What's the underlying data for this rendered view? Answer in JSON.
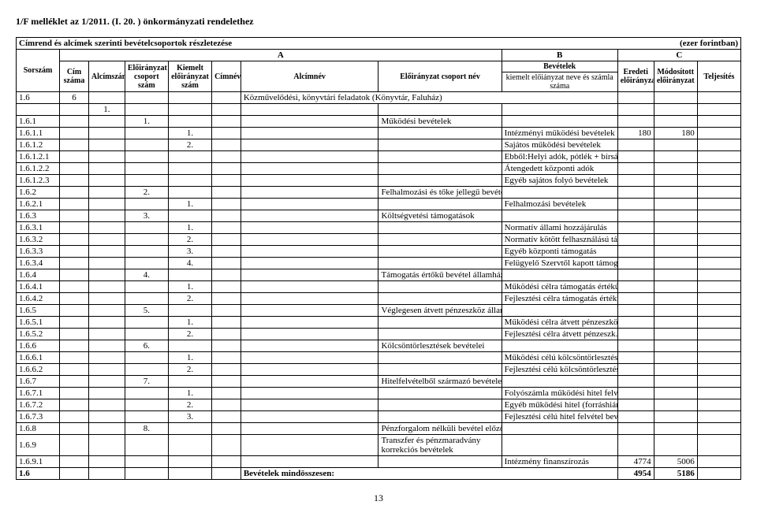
{
  "header_left": "1/F melléklet az 1/2011. (I. 20. ) önkormányzati rendelethez",
  "table_title": "Címrend és alcímek szerinti bevételcsoportok részletezése",
  "unit_label": "(ezer forintban)",
  "abc": {
    "a": "A",
    "b": "B",
    "c": "C"
  },
  "head": {
    "sorszam": "Sorszám",
    "cim_szama": "Cím száma",
    "alcimszam": "Alcímszám",
    "eloiranyzat_csoport_szam": "Előirányzat csoport szám",
    "kiemelt_eloiranyzat_szam": "Kiemelt előirányzat szám",
    "cimnev": "Címnév",
    "alcimnev": "Alcímnév",
    "eloiranyzat_csoport_nev": "Előirányzat csoport név",
    "bevetelek": "Bevételek",
    "kiemelt_sub": "kiemelt előiányzat neve és számla száma",
    "eredeti": "Eredeti előirányzat",
    "modositott": "Módosított előirányzat",
    "teljesites": "Teljesítés"
  },
  "rows": [
    {
      "sor": "1.6",
      "cim": "6",
      "alcim": "",
      "ecs": "",
      "kie": "",
      "cimnev": "",
      "alcimnev": "Közművelődési, könyvtári feladatok (Könyvtár, Faluház)",
      "ecsn": "",
      "nev": "",
      "er": "",
      "mod": "",
      "tel": "",
      "bold": false,
      "span_alcimnev": 3
    },
    {
      "sor": "",
      "cim": "",
      "alcim": "1.",
      "ecs": "",
      "kie": "",
      "cimnev": "",
      "alcimnev": "",
      "ecsn": "",
      "nev": "",
      "er": "",
      "mod": "",
      "tel": "",
      "bold": false
    },
    {
      "sor": "1.6.1",
      "cim": "",
      "alcim": "",
      "ecs": "1.",
      "kie": "",
      "cimnev": "",
      "alcimnev": "",
      "ecsn": "Működési bevételek",
      "nev": "",
      "er": "",
      "mod": "",
      "tel": "",
      "bold": false
    },
    {
      "sor": "1.6.1.1",
      "cim": "",
      "alcim": "",
      "ecs": "",
      "kie": "1.",
      "cimnev": "",
      "alcimnev": "",
      "ecsn": "",
      "nev": "Intézményi működési bevételek",
      "er": "180",
      "mod": "180",
      "tel": "",
      "bold": false
    },
    {
      "sor": "1.6.1.2",
      "cim": "",
      "alcim": "",
      "ecs": "",
      "kie": "2.",
      "cimnev": "",
      "alcimnev": "",
      "ecsn": "",
      "nev": "Sajátos működési bevételek",
      "er": "",
      "mod": "",
      "tel": "",
      "bold": false
    },
    {
      "sor": "1.6.1.2.1",
      "cim": "",
      "alcim": "",
      "ecs": "",
      "kie": "",
      "cimnev": "",
      "alcimnev": "",
      "ecsn": "",
      "nev": "Ebből:Helyi adók, pótlék + bírság",
      "er": "",
      "mod": "",
      "tel": "",
      "bold": false
    },
    {
      "sor": "1.6.1.2.2",
      "cim": "",
      "alcim": "",
      "ecs": "",
      "kie": "",
      "cimnev": "",
      "alcimnev": "",
      "ecsn": "",
      "nev": "Átengedett központi adók",
      "er": "",
      "mod": "",
      "tel": "",
      "bold": false
    },
    {
      "sor": "1.6.1.2.3",
      "cim": "",
      "alcim": "",
      "ecs": "",
      "kie": "",
      "cimnev": "",
      "alcimnev": "",
      "ecsn": "",
      "nev": "Egyéb sajátos folyó bevételek",
      "er": "",
      "mod": "",
      "tel": "",
      "bold": false
    },
    {
      "sor": "1.6.2",
      "cim": "",
      "alcim": "",
      "ecs": "2.",
      "kie": "",
      "cimnev": "",
      "alcimnev": "",
      "ecsn": "Felhalmozási és tőke jellegű bevételek",
      "nev": "",
      "er": "",
      "mod": "",
      "tel": "",
      "bold": false
    },
    {
      "sor": "1.6.2.1",
      "cim": "",
      "alcim": "",
      "ecs": "",
      "kie": "1.",
      "cimnev": "",
      "alcimnev": "",
      "ecsn": "",
      "nev": "Felhalmozási bevételek",
      "er": "",
      "mod": "",
      "tel": "",
      "bold": false
    },
    {
      "sor": "1.6.3",
      "cim": "",
      "alcim": "",
      "ecs": "3.",
      "kie": "",
      "cimnev": "",
      "alcimnev": "",
      "ecsn": "Költségvetési támogatások",
      "nev": "",
      "er": "",
      "mod": "",
      "tel": "",
      "bold": false
    },
    {
      "sor": "1.6.3.1",
      "cim": "",
      "alcim": "",
      "ecs": "",
      "kie": "1.",
      "cimnev": "",
      "alcimnev": "",
      "ecsn": "",
      "nev": "Normatív állami hozzájárulás",
      "er": "",
      "mod": "",
      "tel": "",
      "bold": false
    },
    {
      "sor": "1.6.3.2",
      "cim": "",
      "alcim": "",
      "ecs": "",
      "kie": "2.",
      "cimnev": "",
      "alcimnev": "",
      "ecsn": "",
      "nev": "Normatív kötött felhasználású támogatás",
      "er": "",
      "mod": "",
      "tel": "",
      "bold": false
    },
    {
      "sor": "1.6.3.3",
      "cim": "",
      "alcim": "",
      "ecs": "",
      "kie": "3.",
      "cimnev": "",
      "alcimnev": "",
      "ecsn": "",
      "nev": "Egyéb központi támogatás",
      "er": "",
      "mod": "",
      "tel": "",
      "bold": false
    },
    {
      "sor": "1.6.3.4",
      "cim": "",
      "alcim": "",
      "ecs": "",
      "kie": "4.",
      "cimnev": "",
      "alcimnev": "",
      "ecsn": "",
      "nev": "Felügyelő Szervtől kapott támogatás",
      "er": "",
      "mod": "",
      "tel": "",
      "bold": false
    },
    {
      "sor": "1.6.4",
      "cim": "",
      "alcim": "",
      "ecs": "4.",
      "kie": "",
      "cimnev": "",
      "alcimnev": "",
      "ecsn": "Támogatás értőkű bevétel államháztartáson belül",
      "nev": "",
      "er": "",
      "mod": "",
      "tel": "",
      "bold": false
    },
    {
      "sor": "1.6.4.1",
      "cim": "",
      "alcim": "",
      "ecs": "",
      "kie": "1.",
      "cimnev": "",
      "alcimnev": "",
      "ecsn": "",
      "nev": "Működési célra támogatás értékű bevétel",
      "er": "",
      "mod": "",
      "tel": "",
      "bold": false
    },
    {
      "sor": "1.6.4.2",
      "cim": "",
      "alcim": "",
      "ecs": "",
      "kie": "2.",
      "cimnev": "",
      "alcimnev": "",
      "ecsn": "",
      "nev": "Fejlesztési célra támogatás értékű bevétel",
      "er": "",
      "mod": "",
      "tel": "",
      "bold": false
    },
    {
      "sor": "1.6.5",
      "cim": "",
      "alcim": "",
      "ecs": "5.",
      "kie": "",
      "cimnev": "",
      "alcimnev": "",
      "ecsn": "Véglegesen átvett pénzeszköz államháztartáson kívül",
      "nev": "",
      "er": "",
      "mod": "",
      "tel": "",
      "bold": false
    },
    {
      "sor": "1.6.5.1",
      "cim": "",
      "alcim": "",
      "ecs": "",
      "kie": "1.",
      "cimnev": "",
      "alcimnev": "",
      "ecsn": "",
      "nev": "Működési célra átvett pénzeszközök",
      "er": "",
      "mod": "",
      "tel": "",
      "bold": false
    },
    {
      "sor": "1.6.5.2",
      "cim": "",
      "alcim": "",
      "ecs": "",
      "kie": "2.",
      "cimnev": "",
      "alcimnev": "",
      "ecsn": "",
      "nev": "Fejlesztési célra átvett pénzeszk.",
      "er": "",
      "mod": "",
      "tel": "",
      "bold": false
    },
    {
      "sor": "1.6.6",
      "cim": "",
      "alcim": "",
      "ecs": "6.",
      "kie": "",
      "cimnev": "",
      "alcimnev": "",
      "ecsn": "Kölcsöntörlesztések bevételei",
      "nev": "",
      "er": "",
      "mod": "",
      "tel": "",
      "bold": false
    },
    {
      "sor": "1.6.6.1",
      "cim": "",
      "alcim": "",
      "ecs": "",
      "kie": "1.",
      "cimnev": "",
      "alcimnev": "",
      "ecsn": "",
      "nev": "Működési célú kölcsöntörlesztések",
      "er": "",
      "mod": "",
      "tel": "",
      "bold": false
    },
    {
      "sor": "1.6.6.2",
      "cim": "",
      "alcim": "",
      "ecs": "",
      "kie": "2.",
      "cimnev": "",
      "alcimnev": "",
      "ecsn": "",
      "nev": "Fejlesztési célú kölcsöntörlesztések",
      "er": "",
      "mod": "",
      "tel": "",
      "bold": false
    },
    {
      "sor": "1.6.7",
      "cim": "",
      "alcim": "",
      "ecs": "7.",
      "kie": "",
      "cimnev": "",
      "alcimnev": "",
      "ecsn": "Hitelfelvételből származó bevételek",
      "nev": "",
      "er": "",
      "mod": "",
      "tel": "",
      "bold": false
    },
    {
      "sor": "1.6.7.1",
      "cim": "",
      "alcim": "",
      "ecs": "",
      "kie": "1.",
      "cimnev": "",
      "alcimnev": "",
      "ecsn": "",
      "nev": "Folyószámla működési hitel felvétele",
      "er": "",
      "mod": "",
      "tel": "",
      "bold": false
    },
    {
      "sor": "1.6.7.2",
      "cim": "",
      "alcim": "",
      "ecs": "",
      "kie": "2.",
      "cimnev": "",
      "alcimnev": "",
      "ecsn": "",
      "nev": "Egyéb működési hitel (forráshiány)",
      "er": "",
      "mod": "",
      "tel": "",
      "bold": false
    },
    {
      "sor": "1.6.7.3",
      "cim": "",
      "alcim": "",
      "ecs": "",
      "kie": "3.",
      "cimnev": "",
      "alcimnev": "",
      "ecsn": "",
      "nev": "Fejlesztési célú hitel felvétel bevétel",
      "er": "",
      "mod": "",
      "tel": "",
      "bold": false
    },
    {
      "sor": "1.6.8",
      "cim": "",
      "alcim": "",
      "ecs": "8.",
      "kie": "",
      "cimnev": "",
      "alcimnev": "",
      "ecsn": "Pénzforgalom nélküli bevétel előző évi pénzmaradvány",
      "nev": "",
      "er": "",
      "mod": "",
      "tel": "",
      "bold": false
    },
    {
      "sor": "1.6.9",
      "cim": "",
      "alcim": "",
      "ecs": "",
      "kie": "",
      "cimnev": "",
      "alcimnev": "",
      "ecsn": "Transzfer és pénzmaradvány korrekciós bevételek",
      "nev": "",
      "er": "",
      "mod": "",
      "tel": "",
      "bold": false,
      "ecsn_wrap": true
    },
    {
      "sor": "1.6.9.1",
      "cim": "",
      "alcim": "",
      "ecs": "",
      "kie": "",
      "cimnev": "",
      "alcimnev": "",
      "ecsn": "",
      "nev": "Intézmény finanszírozás",
      "er": "4774",
      "mod": "5006",
      "tel": "",
      "bold": false
    },
    {
      "sor": "1.6",
      "cim": "",
      "alcim": "",
      "ecs": "",
      "kie": "",
      "cimnev": "",
      "alcimnev": "Bevételek mindösszesen:",
      "ecsn": "",
      "nev": "",
      "er": "4954",
      "mod": "5186",
      "tel": "",
      "bold": true,
      "span_alcimnev": 3
    }
  ],
  "page_number": "13",
  "col_widths_pct": [
    6,
    4,
    5,
    6,
    6,
    4,
    19,
    17,
    16,
    5,
    6,
    6
  ]
}
